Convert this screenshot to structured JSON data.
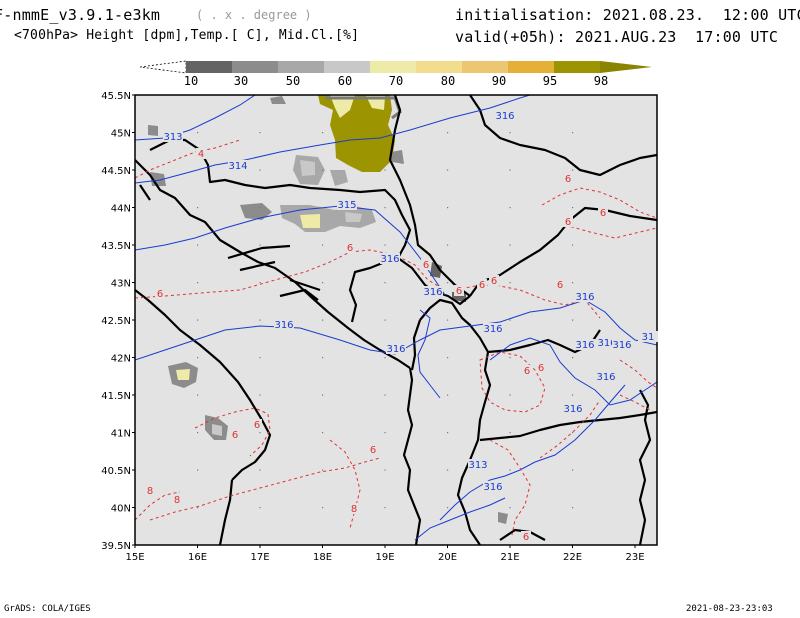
{
  "header": {
    "model": "F-nmmE_v3.9.1-e3km",
    "units": "( . x . degree )",
    "fields": "<700hPa> Height [dpm],Temp.[ C], Mid.Cl.[%]",
    "init": "initialisation: 2021.08.23.  12:00 UTC",
    "valid": "valid(+05h): 2021.AUG.23  17:00 UTC"
  },
  "colorbar": {
    "labels": [
      "10",
      "30",
      "50",
      "60",
      "70",
      "80",
      "90",
      "95",
      "98"
    ],
    "colors": [
      "#646464",
      "#8c8c8c",
      "#a8a8a8",
      "#c8c8c8",
      "#eeeaa8",
      "#f2dc8e",
      "#ecc670",
      "#e6b038",
      "#9c9400"
    ]
  },
  "map": {
    "lat_labels": [
      "45.5N",
      "45N",
      "44.5N",
      "44N",
      "43.5N",
      "43N",
      "42.5N",
      "42N",
      "41.5N",
      "41N",
      "40.5N",
      "40N",
      "39.5N"
    ],
    "lon_labels": [
      "15E",
      "16E",
      "17E",
      "18E",
      "19E",
      "20E",
      "21E",
      "22E",
      "23E"
    ],
    "contour_labels_height": [
      "313",
      "314",
      "315",
      "316",
      "316",
      "316",
      "316",
      "316",
      "316",
      "316",
      "316",
      "316",
      "316",
      "316",
      "316",
      "313",
      "316",
      "31"
    ],
    "contour_labels_temp": [
      "4",
      "6",
      "6",
      "6",
      "6",
      "6",
      "6",
      "6",
      "6",
      "6",
      "6",
      "6",
      "6",
      "6",
      "6",
      "6",
      "8",
      "8",
      "8",
      "6"
    ],
    "colors": {
      "background": "#e3e3e3",
      "coast": "#000000",
      "height": "#1a3cd0",
      "temp": "#e03232"
    }
  },
  "footer": {
    "left": "GrADS: COLA/IGES",
    "right": "2021-08-23-23:03"
  }
}
